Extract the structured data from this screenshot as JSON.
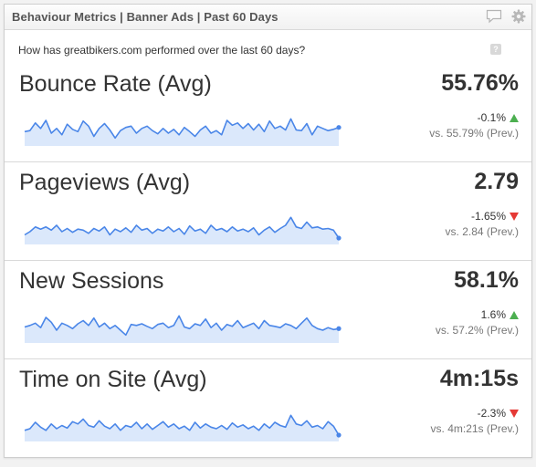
{
  "header": {
    "title": "Behaviour Metrics | Banner Ads | Past 60 Days",
    "comment_icon": "speech-bubble-icon",
    "settings_icon": "gear-icon"
  },
  "subtitle": "How has greatbikers.com performed over the last 60 days?",
  "help_icon": {
    "glyph": "?",
    "name": "help-icon"
  },
  "colors": {
    "sparkline_line": "#4a86e8",
    "sparkline_fill": "#dbe8fb",
    "positive": "#4caf50",
    "negative": "#e53935"
  },
  "metrics": [
    {
      "label": "Bounce Rate (Avg)",
      "value": "55.76%",
      "change": "-0.1%",
      "trend": "up",
      "previous": "vs. 55.79% (Prev.)",
      "sparkline": [
        0.45,
        0.48,
        0.72,
        0.55,
        0.8,
        0.4,
        0.55,
        0.35,
        0.68,
        0.52,
        0.45,
        0.78,
        0.62,
        0.3,
        0.55,
        0.7,
        0.5,
        0.25,
        0.48,
        0.58,
        0.62,
        0.4,
        0.55,
        0.62,
        0.48,
        0.38,
        0.55,
        0.4,
        0.52,
        0.35,
        0.58,
        0.45,
        0.3,
        0.5,
        0.62,
        0.4,
        0.48,
        0.35,
        0.8,
        0.65,
        0.72,
        0.55,
        0.7,
        0.5,
        0.68,
        0.45,
        0.78,
        0.55,
        0.62,
        0.5,
        0.85,
        0.5,
        0.48,
        0.7,
        0.35,
        0.62,
        0.55,
        0.48,
        0.52,
        0.58
      ]
    },
    {
      "label": "Pageviews (Avg)",
      "value": "2.79",
      "change": "-1.65%",
      "trend": "down",
      "previous": "vs. 2.84 (Prev.)",
      "sparkline": [
        0.3,
        0.4,
        0.55,
        0.48,
        0.55,
        0.45,
        0.6,
        0.4,
        0.5,
        0.38,
        0.48,
        0.45,
        0.35,
        0.5,
        0.42,
        0.55,
        0.3,
        0.48,
        0.4,
        0.52,
        0.38,
        0.6,
        0.45,
        0.5,
        0.35,
        0.48,
        0.42,
        0.55,
        0.4,
        0.5,
        0.32,
        0.58,
        0.42,
        0.48,
        0.35,
        0.6,
        0.45,
        0.5,
        0.4,
        0.55,
        0.42,
        0.48,
        0.4,
        0.52,
        0.3,
        0.45,
        0.55,
        0.38,
        0.5,
        0.6,
        0.85,
        0.55,
        0.5,
        0.7,
        0.52,
        0.55,
        0.48,
        0.5,
        0.45,
        0.2
      ]
    },
    {
      "label": "New Sessions",
      "value": "58.1%",
      "change": "1.6%",
      "trend": "up",
      "previous": "vs. 57.2% (Prev.)",
      "sparkline": [
        0.5,
        0.55,
        0.62,
        0.48,
        0.8,
        0.65,
        0.4,
        0.62,
        0.55,
        0.45,
        0.6,
        0.7,
        0.55,
        0.78,
        0.5,
        0.62,
        0.45,
        0.55,
        0.4,
        0.25,
        0.58,
        0.55,
        0.6,
        0.52,
        0.45,
        0.58,
        0.62,
        0.48,
        0.55,
        0.85,
        0.5,
        0.45,
        0.6,
        0.55,
        0.75,
        0.48,
        0.62,
        0.4,
        0.58,
        0.52,
        0.7,
        0.48,
        0.55,
        0.62,
        0.45,
        0.7,
        0.55,
        0.52,
        0.48,
        0.6,
        0.55,
        0.45,
        0.62,
        0.78,
        0.55,
        0.45,
        0.4,
        0.48,
        0.42,
        0.45
      ]
    },
    {
      "label": "Time on Site (Avg)",
      "value": "4m:15s",
      "change": "-2.3%",
      "trend": "down",
      "previous": "vs. 4m:21s (Prev.)",
      "sparkline": [
        0.35,
        0.4,
        0.6,
        0.45,
        0.35,
        0.55,
        0.4,
        0.5,
        0.42,
        0.62,
        0.55,
        0.7,
        0.5,
        0.45,
        0.65,
        0.48,
        0.4,
        0.55,
        0.35,
        0.5,
        0.45,
        0.6,
        0.4,
        0.55,
        0.38,
        0.5,
        0.62,
        0.45,
        0.55,
        0.4,
        0.48,
        0.35,
        0.6,
        0.42,
        0.55,
        0.45,
        0.4,
        0.5,
        0.38,
        0.58,
        0.45,
        0.52,
        0.4,
        0.48,
        0.35,
        0.55,
        0.42,
        0.6,
        0.5,
        0.45,
        0.82,
        0.55,
        0.5,
        0.65,
        0.45,
        0.5,
        0.4,
        0.62,
        0.48,
        0.2
      ]
    }
  ]
}
